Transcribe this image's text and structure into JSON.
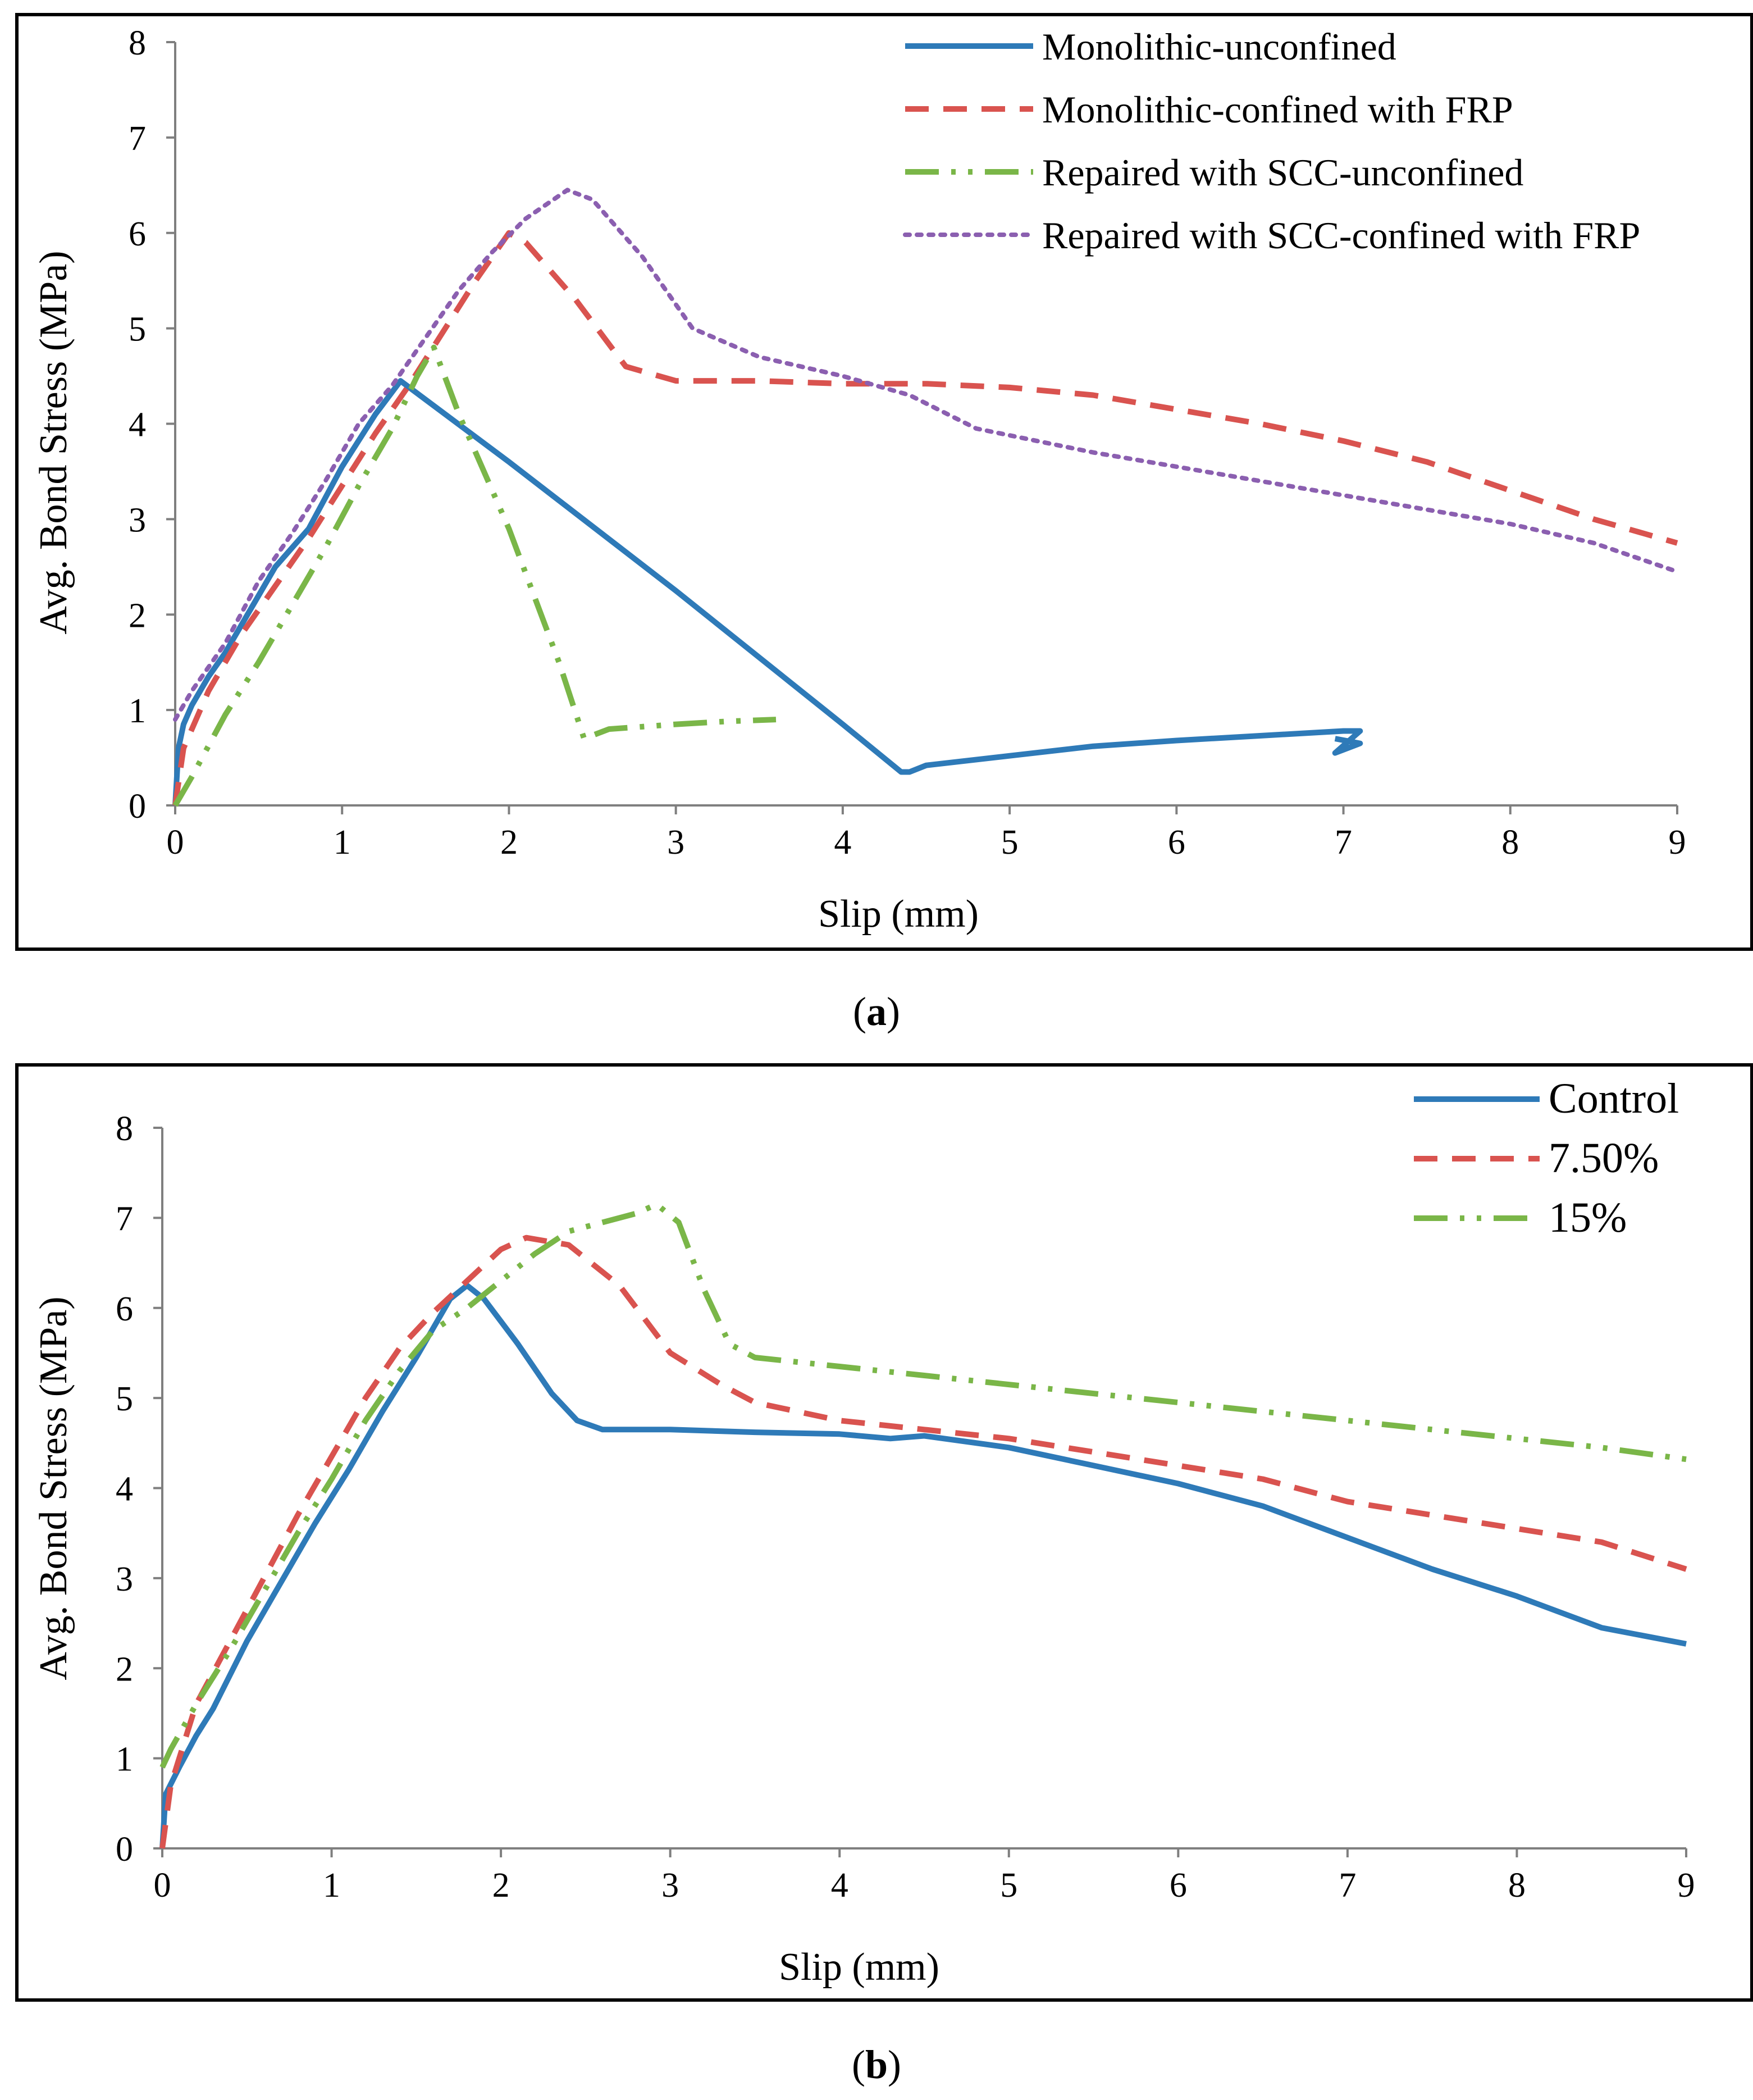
{
  "chart_data": [
    {
      "type": "line",
      "panel_label": "a",
      "xlabel": "Slip (mm)",
      "ylabel": "Avg. Bond Stress (MPa)",
      "xlim": [
        0,
        9
      ],
      "ylim": [
        0,
        8
      ],
      "xticks": [
        "0",
        "1",
        "2",
        "3",
        "4",
        "5",
        "6",
        "7",
        "8",
        "9"
      ],
      "yticks": [
        "0",
        "1",
        "2",
        "3",
        "4",
        "5",
        "6",
        "7",
        "8"
      ],
      "legend_position": "top-right",
      "series": [
        {
          "name": "Monolithic-unconfined",
          "color": "#2e7ab8",
          "style": "solid",
          "points": [
            [
              0,
              0
            ],
            [
              0.02,
              0.6
            ],
            [
              0.05,
              0.85
            ],
            [
              0.1,
              1.05
            ],
            [
              0.2,
              1.35
            ],
            [
              0.3,
              1.6
            ],
            [
              0.4,
              1.9
            ],
            [
              0.5,
              2.2
            ],
            [
              0.6,
              2.5
            ],
            [
              0.8,
              2.9
            ],
            [
              1.0,
              3.55
            ],
            [
              1.2,
              4.1
            ],
            [
              1.35,
              4.45
            ],
            [
              2.0,
              3.6
            ],
            [
              3.0,
              2.25
            ],
            [
              4.0,
              0.85
            ],
            [
              4.35,
              0.35
            ],
            [
              4.4,
              0.35
            ],
            [
              4.5,
              0.42
            ],
            [
              5.0,
              0.52
            ],
            [
              5.5,
              0.62
            ],
            [
              6.0,
              0.68
            ],
            [
              6.5,
              0.73
            ],
            [
              7.0,
              0.78
            ],
            [
              7.1,
              0.78
            ],
            [
              6.95,
              0.55
            ],
            [
              7.1,
              0.65
            ],
            [
              6.95,
              0.7
            ]
          ]
        },
        {
          "name": "Monolithic-confined with FRP",
          "color": "#d9534f",
          "style": "dashed",
          "points": [
            [
              0,
              0
            ],
            [
              0.05,
              0.6
            ],
            [
              0.2,
              1.2
            ],
            [
              0.4,
              1.8
            ],
            [
              0.6,
              2.3
            ],
            [
              0.8,
              2.8
            ],
            [
              1.0,
              3.35
            ],
            [
              1.2,
              3.9
            ],
            [
              1.4,
              4.4
            ],
            [
              1.6,
              4.95
            ],
            [
              1.8,
              5.5
            ],
            [
              2.0,
              6.0
            ],
            [
              2.1,
              5.9
            ],
            [
              2.4,
              5.3
            ],
            [
              2.7,
              4.6
            ],
            [
              3.0,
              4.45
            ],
            [
              3.5,
              4.45
            ],
            [
              4.0,
              4.42
            ],
            [
              4.5,
              4.42
            ],
            [
              5.0,
              4.38
            ],
            [
              5.5,
              4.3
            ],
            [
              6.0,
              4.15
            ],
            [
              6.5,
              4.0
            ],
            [
              7.0,
              3.82
            ],
            [
              7.5,
              3.6
            ],
            [
              8.0,
              3.3
            ],
            [
              8.5,
              3.0
            ],
            [
              9.0,
              2.75
            ]
          ]
        },
        {
          "name": "Repaired with SCC-unconfined",
          "color": "#7ab648",
          "style": "dashdotdot",
          "points": [
            [
              0,
              0
            ],
            [
              0.1,
              0.3
            ],
            [
              0.3,
              0.95
            ],
            [
              0.5,
              1.5
            ],
            [
              0.7,
              2.1
            ],
            [
              0.9,
              2.7
            ],
            [
              1.1,
              3.35
            ],
            [
              1.3,
              3.95
            ],
            [
              1.45,
              4.5
            ],
            [
              1.55,
              4.8
            ],
            [
              1.7,
              4.1
            ],
            [
              2.0,
              2.9
            ],
            [
              2.3,
              1.5
            ],
            [
              2.45,
              0.7
            ],
            [
              2.6,
              0.8
            ],
            [
              3.0,
              0.85
            ],
            [
              3.3,
              0.88
            ],
            [
              3.6,
              0.9
            ]
          ]
        },
        {
          "name": "Repaired with SCC-confined with FRP",
          "color": "#8b5fb0",
          "style": "dotted",
          "points": [
            [
              0,
              0.9
            ],
            [
              0.1,
              1.2
            ],
            [
              0.3,
              1.7
            ],
            [
              0.5,
              2.35
            ],
            [
              0.7,
              2.85
            ],
            [
              0.9,
              3.4
            ],
            [
              1.1,
              4.0
            ],
            [
              1.3,
              4.4
            ],
            [
              1.5,
              4.9
            ],
            [
              1.7,
              5.4
            ],
            [
              1.9,
              5.8
            ],
            [
              2.1,
              6.15
            ],
            [
              2.35,
              6.45
            ],
            [
              2.5,
              6.35
            ],
            [
              2.8,
              5.75
            ],
            [
              3.1,
              5.0
            ],
            [
              3.5,
              4.7
            ],
            [
              4.0,
              4.5
            ],
            [
              4.4,
              4.3
            ],
            [
              4.8,
              3.95
            ],
            [
              5.5,
              3.7
            ],
            [
              6.0,
              3.55
            ],
            [
              6.5,
              3.4
            ],
            [
              7.0,
              3.25
            ],
            [
              7.5,
              3.1
            ],
            [
              8.0,
              2.95
            ],
            [
              8.5,
              2.75
            ],
            [
              9.0,
              2.45
            ]
          ]
        }
      ]
    },
    {
      "type": "line",
      "panel_label": "b",
      "xlabel": "Slip (mm)",
      "ylabel": "Avg. Bond Stress (MPa)",
      "xlim": [
        0,
        9
      ],
      "ylim": [
        0,
        8
      ],
      "xticks": [
        "0",
        "1",
        "2",
        "3",
        "4",
        "5",
        "6",
        "7",
        "8",
        "9"
      ],
      "yticks": [
        "0",
        "1",
        "2",
        "3",
        "4",
        "5",
        "6",
        "7",
        "8"
      ],
      "legend_position": "top-right",
      "series": [
        {
          "name": "Control",
          "color": "#2e7ab8",
          "style": "solid",
          "points": [
            [
              0,
              0
            ],
            [
              0.02,
              0.6
            ],
            [
              0.1,
              0.9
            ],
            [
              0.2,
              1.25
            ],
            [
              0.3,
              1.55
            ],
            [
              0.5,
              2.3
            ],
            [
              0.7,
              2.95
            ],
            [
              0.9,
              3.6
            ],
            [
              1.1,
              4.2
            ],
            [
              1.3,
              4.85
            ],
            [
              1.5,
              5.45
            ],
            [
              1.7,
              6.1
            ],
            [
              1.8,
              6.25
            ],
            [
              1.9,
              6.1
            ],
            [
              2.1,
              5.6
            ],
            [
              2.3,
              5.05
            ],
            [
              2.45,
              4.75
            ],
            [
              2.6,
              4.65
            ],
            [
              3.0,
              4.65
            ],
            [
              3.5,
              4.62
            ],
            [
              4.0,
              4.6
            ],
            [
              4.3,
              4.55
            ],
            [
              4.5,
              4.58
            ],
            [
              5.0,
              4.45
            ],
            [
              5.5,
              4.25
            ],
            [
              6.0,
              4.05
            ],
            [
              6.5,
              3.8
            ],
            [
              7.0,
              3.45
            ],
            [
              7.5,
              3.1
            ],
            [
              8.0,
              2.8
            ],
            [
              8.5,
              2.45
            ],
            [
              9.0,
              2.27
            ]
          ]
        },
        {
          "name": "7.50%",
          "color": "#d9534f",
          "style": "dashed",
          "points": [
            [
              0,
              0
            ],
            [
              0.05,
              0.7
            ],
            [
              0.2,
              1.6
            ],
            [
              0.4,
              2.3
            ],
            [
              0.6,
              3.0
            ],
            [
              0.8,
              3.7
            ],
            [
              1.0,
              4.35
            ],
            [
              1.2,
              5.0
            ],
            [
              1.4,
              5.55
            ],
            [
              1.6,
              5.95
            ],
            [
              1.8,
              6.3
            ],
            [
              2.0,
              6.65
            ],
            [
              2.15,
              6.78
            ],
            [
              2.4,
              6.7
            ],
            [
              2.7,
              6.25
            ],
            [
              3.0,
              5.5
            ],
            [
              3.3,
              5.15
            ],
            [
              3.5,
              4.95
            ],
            [
              4.0,
              4.75
            ],
            [
              4.5,
              4.65
            ],
            [
              5.0,
              4.55
            ],
            [
              5.5,
              4.4
            ],
            [
              6.0,
              4.25
            ],
            [
              6.5,
              4.1
            ],
            [
              7.0,
              3.85
            ],
            [
              7.5,
              3.7
            ],
            [
              8.0,
              3.55
            ],
            [
              8.5,
              3.4
            ],
            [
              9.0,
              3.1
            ]
          ]
        },
        {
          "name": "15%",
          "color": "#7ab648",
          "style": "dashdotdot",
          "points": [
            [
              0,
              0.9
            ],
            [
              0.05,
              1.1
            ],
            [
              0.2,
              1.6
            ],
            [
              0.4,
              2.2
            ],
            [
              0.6,
              2.85
            ],
            [
              0.8,
              3.5
            ],
            [
              1.0,
              4.1
            ],
            [
              1.2,
              4.75
            ],
            [
              1.4,
              5.3
            ],
            [
              1.6,
              5.75
            ],
            [
              1.8,
              6.0
            ],
            [
              2.0,
              6.3
            ],
            [
              2.2,
              6.6
            ],
            [
              2.4,
              6.85
            ],
            [
              2.6,
              6.95
            ],
            [
              2.8,
              7.05
            ],
            [
              2.92,
              7.15
            ],
            [
              3.05,
              6.95
            ],
            [
              3.2,
              6.2
            ],
            [
              3.35,
              5.6
            ],
            [
              3.5,
              5.45
            ],
            [
              4.0,
              5.35
            ],
            [
              4.5,
              5.25
            ],
            [
              5.0,
              5.15
            ],
            [
              5.5,
              5.05
            ],
            [
              6.0,
              4.95
            ],
            [
              6.5,
              4.85
            ],
            [
              7.0,
              4.75
            ],
            [
              7.5,
              4.65
            ],
            [
              8.0,
              4.55
            ],
            [
              8.5,
              4.45
            ],
            [
              9.0,
              4.32
            ]
          ]
        }
      ]
    }
  ]
}
